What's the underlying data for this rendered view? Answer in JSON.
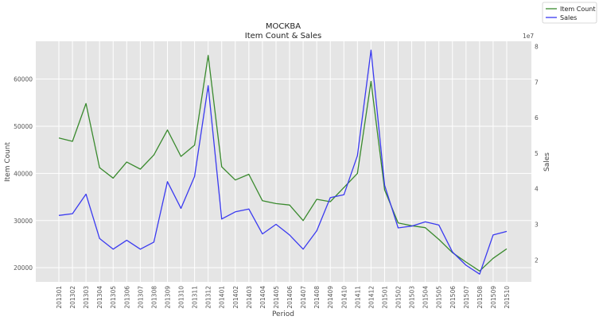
{
  "chart_data": {
    "type": "line",
    "title": "МОСКВА",
    "subtitle": "Item Count & Sales",
    "xlabel": "Period",
    "ylabel_left": "Item Count",
    "ylabel_right": "Sales",
    "right_axis_exponent": "1e7",
    "grid": true,
    "legend_position": "top-right",
    "categories": [
      "201301",
      "201302",
      "201303",
      "201304",
      "201305",
      "201306",
      "201307",
      "201308",
      "201309",
      "201310",
      "201311",
      "201312",
      "201401",
      "201402",
      "201403",
      "201404",
      "201405",
      "201406",
      "201407",
      "201408",
      "201409",
      "201410",
      "201411",
      "201412",
      "201501",
      "201502",
      "201503",
      "201504",
      "201505",
      "201506",
      "201507",
      "201508",
      "201509",
      "201510"
    ],
    "left_axis": {
      "ylim": [
        17000,
        68000
      ],
      "ticks": [
        20000,
        30000,
        40000,
        50000,
        60000
      ]
    },
    "right_axis": {
      "ylim": [
        1.38,
        8.15
      ],
      "ticks": [
        2,
        3,
        4,
        5,
        6,
        7,
        8
      ]
    },
    "series": [
      {
        "name": "Item Count",
        "axis": "left",
        "color": "#3a8a2e",
        "values": [
          47500,
          46800,
          54800,
          41200,
          39000,
          42400,
          40900,
          43900,
          49200,
          43600,
          46000,
          65000,
          41400,
          38600,
          39800,
          34200,
          33600,
          33300,
          30000,
          34500,
          34000,
          37000,
          40000,
          59500,
          36500,
          29500,
          28900,
          28500,
          26000,
          23200,
          21200,
          19300,
          22000,
          24000
        ]
      },
      {
        "name": "Sales",
        "axis": "right",
        "color": "#3a3af0",
        "values": [
          3.25,
          3.3,
          3.85,
          2.6,
          2.3,
          2.55,
          2.3,
          2.5,
          4.2,
          3.45,
          4.35,
          6.9,
          3.15,
          3.35,
          3.43,
          2.73,
          3.0,
          2.7,
          2.3,
          2.82,
          3.75,
          3.83,
          4.93,
          7.9,
          4.1,
          2.9,
          2.95,
          3.07,
          2.98,
          2.22,
          1.85,
          1.6,
          2.7,
          2.8
        ]
      }
    ]
  }
}
